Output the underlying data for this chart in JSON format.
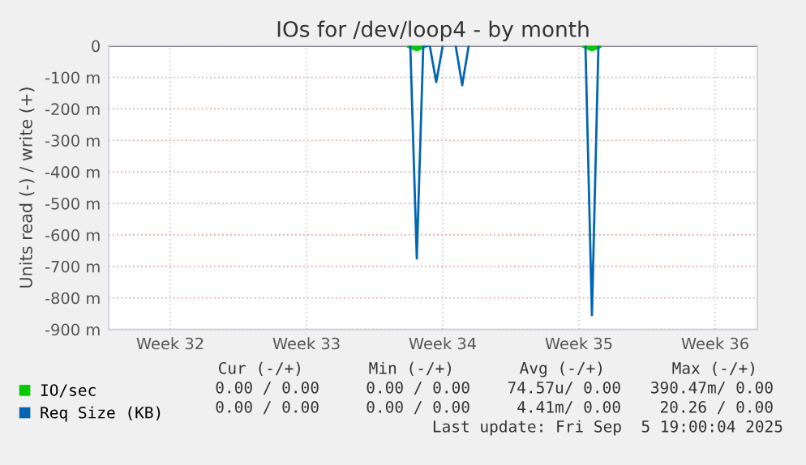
{
  "chart_data": {
    "type": "line",
    "title": "IOs for /dev/loop4 - by month",
    "ylabel": "Units read (-) / write (+)",
    "categories": [
      null,
      null,
      null,
      null,
      null,
      null,
      null,
      null,
      null,
      "Week 32",
      null,
      null,
      null,
      null,
      null,
      null,
      null,
      null,
      null,
      null,
      null,
      null,
      null,
      null,
      null,
      null,
      null,
      null,
      null,
      null,
      "Week 33",
      null,
      null,
      null,
      null,
      null,
      null,
      null,
      null,
      null,
      null,
      null,
      null,
      null,
      null,
      null,
      null,
      null,
      null,
      null,
      null,
      "Week 34",
      null,
      null,
      null,
      null,
      null,
      null,
      null,
      null,
      null,
      null,
      null,
      null,
      null,
      null,
      null,
      null,
      null,
      null,
      null,
      null,
      "Week 35",
      null,
      null,
      null,
      null,
      null,
      null,
      null,
      null,
      null,
      null,
      null,
      null,
      null,
      null,
      null,
      null,
      null,
      null,
      null,
      null,
      "Week 36",
      null,
      null,
      null,
      null,
      null,
      null
    ],
    "ylim": [
      -900,
      0
    ],
    "yticks": [
      {
        "value": -900,
        "label": "-900 m"
      },
      {
        "value": -800,
        "label": "-800 m"
      },
      {
        "value": -700,
        "label": "-700 m"
      },
      {
        "value": -600,
        "label": "-600 m"
      },
      {
        "value": -500,
        "label": "-500 m"
      },
      {
        "value": -400,
        "label": "-400 m"
      },
      {
        "value": -300,
        "label": "-300 m"
      },
      {
        "value": -200,
        "label": "-200 m"
      },
      {
        "value": -100,
        "label": "-100 m"
      },
      0
    ],
    "series": [
      {
        "name": "IO/sec",
        "color": "#00cc00",
        "values": [
          null,
          null,
          null,
          null,
          null,
          null,
          null,
          null,
          null,
          null,
          null,
          null,
          null,
          null,
          null,
          null,
          null,
          null,
          null,
          null,
          null,
          null,
          null,
          null,
          null,
          null,
          null,
          null,
          null,
          null,
          null,
          null,
          null,
          null,
          null,
          null,
          null,
          null,
          null,
          null,
          null,
          null,
          null,
          null,
          null,
          null,
          0,
          -8,
          0,
          null,
          null,
          null,
          null,
          null,
          null,
          null,
          null,
          null,
          null,
          null,
          null,
          null,
          null,
          null,
          null,
          null,
          null,
          null,
          null,
          null,
          null,
          null,
          null,
          0,
          -8,
          0,
          null,
          null,
          null,
          null,
          null,
          null,
          null,
          null,
          null,
          null,
          null,
          null,
          null,
          null,
          null,
          null,
          null,
          null,
          null,
          null,
          null,
          null,
          null,
          null
        ]
      },
      {
        "name": "Req Size (KB)",
        "color": "#0066b3",
        "values": [
          null,
          null,
          null,
          null,
          null,
          null,
          null,
          null,
          null,
          null,
          null,
          null,
          null,
          null,
          null,
          null,
          null,
          null,
          null,
          null,
          null,
          null,
          null,
          null,
          null,
          null,
          null,
          null,
          null,
          null,
          null,
          null,
          null,
          null,
          null,
          null,
          null,
          null,
          null,
          null,
          null,
          null,
          null,
          null,
          null,
          null,
          0,
          -675,
          0,
          0,
          -115,
          0,
          null,
          0,
          -125,
          0,
          null,
          null,
          null,
          null,
          null,
          null,
          null,
          null,
          null,
          null,
          null,
          null,
          null,
          null,
          null,
          null,
          null,
          0,
          -855,
          0,
          null,
          null,
          null,
          null,
          null,
          null,
          null,
          null,
          null,
          null,
          null,
          null,
          null,
          null,
          null,
          null,
          null,
          null,
          null,
          null,
          null,
          null,
          null,
          null
        ]
      }
    ],
    "ref_lines": [
      {
        "axis": "y",
        "value": 0,
        "color": "#000000"
      }
    ],
    "grid": true,
    "legend": "bottom",
    "marker": "none",
    "line_style": "solid",
    "annotations": [
      "Cur (-/+)",
      "Min (-/+)",
      "Avg (-/+)",
      "Max (-/+)",
      "0.00 / 0.00",
      "0.00 / 0.00",
      "74.57u/ 0.00",
      "390.47m/ 0.00",
      "0.00 / 0.00",
      "0.00 / 0.00",
      "4.41m/ 0.00",
      "20.26 / 0.00",
      "Last update: Fri Sep  5 19:00:04 2025"
    ]
  }
}
